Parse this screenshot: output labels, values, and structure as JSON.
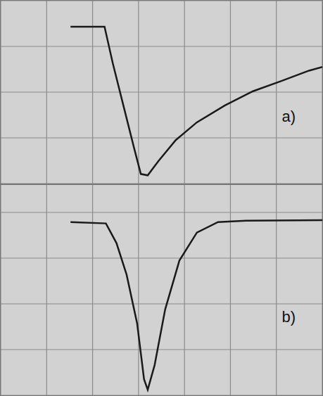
{
  "chart_data": [
    {
      "type": "line",
      "annotation": "a)",
      "color": "#1a1a1a",
      "grid": true,
      "tick_labels": false,
      "x": [
        1.52,
        2.26,
        2.44,
        2.67,
        2.9,
        3.05,
        3.2,
        3.43,
        3.81,
        4.27,
        4.88,
        5.49,
        6.1,
        6.71,
        7.0
      ],
      "values": [
        3.43,
        3.43,
        2.63,
        1.71,
        0.79,
        0.21,
        0.18,
        0.49,
        0.95,
        1.34,
        1.71,
        2.02,
        2.24,
        2.47,
        2.55
      ],
      "xlim": [
        0,
        7
      ],
      "ylim": [
        0,
        4
      ],
      "xticks": [
        0,
        1,
        2,
        3,
        4,
        5,
        6,
        7
      ],
      "yticks": [
        0,
        1,
        2,
        3,
        4
      ]
    },
    {
      "type": "line",
      "annotation": "b)",
      "color": "#1a1a1a",
      "grid": true,
      "tick_labels": false,
      "x": [
        1.52,
        2.29,
        2.52,
        2.74,
        2.97,
        3.12,
        3.2,
        3.35,
        3.58,
        3.89,
        4.27,
        4.73,
        5.34,
        7.0
      ],
      "values": [
        3.79,
        3.76,
        3.33,
        2.64,
        1.57,
        0.35,
        0.12,
        0.66,
        1.88,
        2.95,
        3.56,
        3.79,
        3.82,
        3.83
      ],
      "xlim": [
        0,
        7
      ],
      "ylim": [
        0,
        4.6
      ],
      "xticks": [
        0,
        1,
        2,
        3,
        4,
        5,
        6,
        7
      ],
      "yticks": [
        0,
        1,
        2,
        3,
        4
      ]
    }
  ]
}
